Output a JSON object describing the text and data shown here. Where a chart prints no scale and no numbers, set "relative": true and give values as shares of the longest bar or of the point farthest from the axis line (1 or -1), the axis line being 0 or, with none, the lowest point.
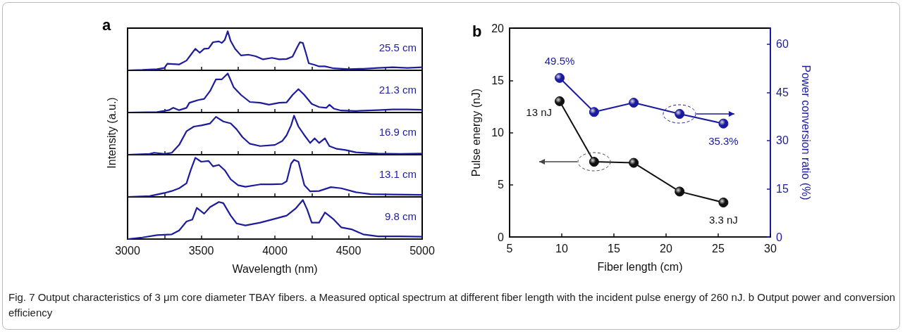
{
  "chart_data": [
    {
      "type": "line",
      "title": "a",
      "relative": true,
      "color": "#1c1c9c",
      "marker": "none",
      "tick_labels": false,
      "xlim": [
        3000,
        5000
      ],
      "xticks": [
        3000,
        3250,
        3500,
        3750,
        4000,
        4250,
        4500,
        4750,
        5000
      ],
      "annotations": [
        "25.5 cm"
      ],
      "x": [
        3000,
        3100,
        3200,
        3250,
        3270,
        3350,
        3400,
        3430,
        3460,
        3490,
        3520,
        3550,
        3580,
        3620,
        3640,
        3660,
        3680,
        3700,
        3730,
        3770,
        3820,
        3870,
        3920,
        3980,
        4030,
        4080,
        4120,
        4150,
        4170,
        4190,
        4210,
        4230,
        4270,
        4300,
        4340,
        4400,
        4500,
        4600,
        4700,
        4800,
        4900,
        5000
      ],
      "values": [
        0,
        0.01,
        0.03,
        0.06,
        0.17,
        0.15,
        0.25,
        0.4,
        0.55,
        0.45,
        0.55,
        0.56,
        0.72,
        0.74,
        0.7,
        0.78,
        1.0,
        0.75,
        0.55,
        0.38,
        0.4,
        0.36,
        0.28,
        0.32,
        0.28,
        0.29,
        0.35,
        0.58,
        0.72,
        0.7,
        0.45,
        0.18,
        0.14,
        0.1,
        0.1,
        0.05,
        0.03,
        0.04,
        0.06,
        0.08,
        0.06,
        0.08
      ]
    },
    {
      "type": "line",
      "relative": true,
      "color": "#1c1c9c",
      "marker": "none",
      "tick_labels": false,
      "xlim": [
        3000,
        5000
      ],
      "xticks": [
        3000,
        3250,
        3500,
        3750,
        4000,
        4250,
        4500,
        4750,
        5000
      ],
      "annotations": [
        "21.3 cm"
      ],
      "x": [
        3000,
        3200,
        3280,
        3310,
        3350,
        3400,
        3420,
        3480,
        3520,
        3560,
        3600,
        3640,
        3680,
        3720,
        3770,
        3830,
        3900,
        3960,
        4030,
        4080,
        4120,
        4160,
        4200,
        4250,
        4300,
        4350,
        4370,
        4400,
        4450,
        4550,
        4700,
        4800,
        4900,
        5000
      ],
      "values": [
        0,
        0.01,
        0.06,
        0.12,
        0.06,
        0.12,
        0.25,
        0.32,
        0.35,
        0.55,
        0.85,
        0.85,
        1.0,
        0.65,
        0.45,
        0.27,
        0.25,
        0.2,
        0.25,
        0.26,
        0.45,
        0.6,
        0.45,
        0.22,
        0.14,
        0.12,
        0.2,
        0.1,
        0.05,
        0.04,
        0.06,
        0.08,
        0.08,
        0.07
      ]
    },
    {
      "type": "line",
      "ylabel": "Intensity (a.u.)",
      "relative": true,
      "color": "#1c1c9c",
      "marker": "none",
      "tick_labels": false,
      "xlim": [
        3000,
        5000
      ],
      "xticks": [
        3000,
        3250,
        3500,
        3750,
        4000,
        4250,
        4500,
        4750,
        5000
      ],
      "annotations": [
        "16.9 cm"
      ],
      "x": [
        3000,
        3150,
        3180,
        3250,
        3300,
        3350,
        3400,
        3450,
        3500,
        3560,
        3600,
        3650,
        3700,
        3740,
        3780,
        3830,
        3900,
        4000,
        4050,
        4080,
        4110,
        4130,
        4160,
        4200,
        4240,
        4270,
        4300,
        4340,
        4370,
        4420,
        4480,
        4550,
        4700,
        4850,
        5000
      ],
      "values": [
        0,
        0.02,
        0.05,
        0.02,
        0.05,
        0.25,
        0.6,
        0.72,
        0.75,
        0.8,
        0.97,
        0.85,
        0.8,
        0.65,
        0.45,
        0.28,
        0.22,
        0.25,
        0.35,
        0.5,
        0.75,
        1.0,
        0.72,
        0.5,
        0.3,
        0.42,
        0.3,
        0.42,
        0.22,
        0.15,
        0.12,
        0.06,
        0.03,
        0.02,
        0.03
      ]
    },
    {
      "type": "line",
      "relative": true,
      "color": "#1c1c9c",
      "marker": "none",
      "tick_labels": false,
      "xlim": [
        3000,
        5000
      ],
      "xticks": [
        3000,
        3250,
        3500,
        3750,
        4000,
        4250,
        4500,
        4750,
        5000
      ],
      "annotations": [
        "13.1 cm"
      ],
      "x": [
        3000,
        3150,
        3250,
        3300,
        3350,
        3400,
        3430,
        3460,
        3500,
        3550,
        3580,
        3620,
        3660,
        3700,
        3750,
        3800,
        3900,
        3980,
        4050,
        4080,
        4110,
        4130,
        4160,
        4200,
        4240,
        4300,
        4380,
        4450,
        4550,
        4650,
        4800,
        5000
      ],
      "values": [
        0,
        0.02,
        0.1,
        0.15,
        0.22,
        0.35,
        0.7,
        1.0,
        0.9,
        0.92,
        0.78,
        0.82,
        0.68,
        0.45,
        0.3,
        0.26,
        0.32,
        0.32,
        0.33,
        0.4,
        0.85,
        0.95,
        0.9,
        0.3,
        0.14,
        0.15,
        0.25,
        0.22,
        0.12,
        0.07,
        0.06,
        0.05
      ]
    },
    {
      "type": "line",
      "xlabel": "Wavelength (nm)",
      "relative": true,
      "color": "#1c1c9c",
      "marker": "none",
      "tick_labels": "x",
      "xlim": [
        3000,
        5000
      ],
      "xticks": [
        3000,
        {
          "value": 3250,
          "label": null
        },
        3500,
        {
          "value": 3750,
          "label": null
        },
        4000,
        {
          "value": 4250,
          "label": null
        },
        4500,
        {
          "value": 4750,
          "label": null
        },
        5000
      ],
      "annotations": [
        "9.8 cm"
      ],
      "x": [
        3000,
        3100,
        3200,
        3300,
        3350,
        3400,
        3440,
        3470,
        3520,
        3560,
        3620,
        3650,
        3700,
        3740,
        3800,
        3900,
        4000,
        4080,
        4140,
        4190,
        4220,
        4250,
        4300,
        4340,
        4400,
        4450,
        4520,
        4600,
        4700,
        4850,
        5000
      ],
      "values": [
        0,
        0.04,
        0.1,
        0.12,
        0.22,
        0.45,
        0.5,
        0.8,
        0.65,
        0.82,
        0.95,
        0.92,
        0.6,
        0.4,
        0.35,
        0.42,
        0.52,
        0.6,
        0.78,
        1.0,
        0.75,
        0.42,
        0.42,
        0.68,
        0.5,
        0.3,
        0.25,
        0.12,
        0.07,
        0.07,
        0.06
      ]
    },
    {
      "type": "line",
      "title": "b",
      "xlabel": "Fiber length (cm)",
      "ylabel": "Pulse energy (nJ)",
      "y2label": "Power conversion ratio (%)",
      "marker": "circle",
      "x": [
        9.8,
        13.1,
        16.9,
        21.3,
        25.5
      ],
      "xlim": [
        5,
        30
      ],
      "xticks": [
        5,
        10,
        15,
        20,
        25,
        30
      ],
      "ylim": [
        0,
        20
      ],
      "yticks": [
        0,
        5,
        10,
        15,
        20
      ],
      "y2lim": [
        0,
        65
      ],
      "y2ticks": [
        0,
        15,
        30,
        45,
        60
      ],
      "series": [
        {
          "color": "#111111",
          "values": [
            13,
            7.2,
            7.1,
            4.35,
            3.3
          ],
          "value_labels": [
            "13 nJ",
            null,
            null,
            null,
            "3.3 nJ"
          ]
        },
        {
          "color": "#1a1aa0",
          "axis": "y2",
          "values": [
            49.5,
            38.9,
            41.8,
            38.3,
            35.3
          ],
          "value_labels": [
            "49.5%",
            null,
            null,
            null,
            "35.3%"
          ]
        }
      ],
      "annotations": [
        "Fig. 7 Output characteristics of 3 μm core diameter TBAY fibers. a Measured optical spectrum at different fiber length with the incident pulse energy of 260 nJ. b Output power and conversion efficiency"
      ]
    }
  ]
}
